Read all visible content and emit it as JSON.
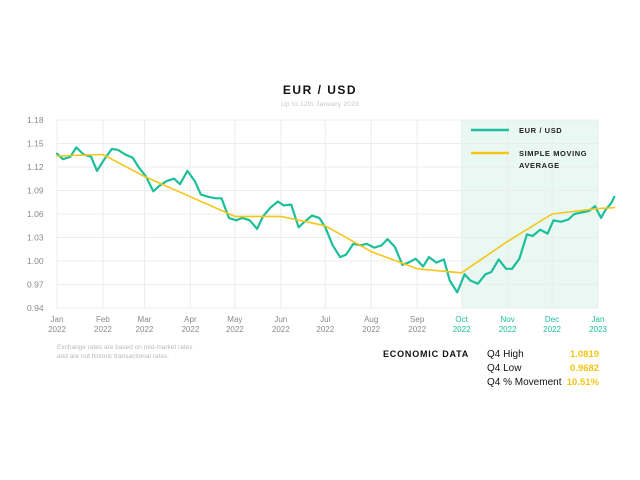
{
  "chart_data": {
    "type": "line",
    "title": "EUR / USD",
    "subtitle": "Up to 12th January 2023",
    "ylim": [
      0.94,
      1.18
    ],
    "y_ticks": [
      "1.18",
      "1.15",
      "1.12",
      "1.09",
      "1.06",
      "1.03",
      "1.00",
      "0.97",
      "0.94"
    ],
    "y_tick_values": [
      1.18,
      1.15,
      1.12,
      1.09,
      1.06,
      1.03,
      1.0,
      0.97,
      0.94
    ],
    "x_ticks": [
      {
        "label": [
          "Jan",
          "2022"
        ],
        "date": "2022-01-01"
      },
      {
        "label": [
          "Feb",
          "2022"
        ],
        "date": "2022-02-01"
      },
      {
        "label": [
          "Mar",
          "2022"
        ],
        "date": "2022-03-01"
      },
      {
        "label": [
          "Apr",
          "2022"
        ],
        "date": "2022-04-01"
      },
      {
        "label": [
          "May",
          "2022"
        ],
        "date": "2022-05-01"
      },
      {
        "label": [
          "Jun",
          "2022"
        ],
        "date": "2022-06-01"
      },
      {
        "label": [
          "Jul",
          "2022"
        ],
        "date": "2022-07-01"
      },
      {
        "label": [
          "Aug",
          "2022"
        ],
        "date": "2022-08-01"
      },
      {
        "label": [
          "Sep",
          "2022"
        ],
        "date": "2022-09-01"
      },
      {
        "label": [
          "Oct",
          "2022"
        ],
        "date": "2022-10-01",
        "highlight": true
      },
      {
        "label": [
          "Nov",
          "2022"
        ],
        "date": "2022-11-01",
        "highlight": true
      },
      {
        "label": [
          "Dec",
          "2022"
        ],
        "date": "2022-12-01",
        "highlight": true
      },
      {
        "label": [
          "Jan",
          "2023"
        ],
        "date": "2023-01-01",
        "highlight": true
      }
    ],
    "x_range": [
      "2022-01-01",
      "2023-01-01"
    ],
    "highlight_range": [
      "2022-10-01",
      "2023-01-01"
    ],
    "grid": true,
    "legend_position": "top-right",
    "series": [
      {
        "name": "EUR / USD",
        "color": "#1bbf9a",
        "points": [
          [
            "2022-01-01",
            1.137
          ],
          [
            "2022-01-05",
            1.13
          ],
          [
            "2022-01-10",
            1.133
          ],
          [
            "2022-01-14",
            1.145
          ],
          [
            "2022-01-19",
            1.136
          ],
          [
            "2022-01-24",
            1.133
          ],
          [
            "2022-01-28",
            1.115
          ],
          [
            "2022-02-02",
            1.13
          ],
          [
            "2022-02-07",
            1.143
          ],
          [
            "2022-02-11",
            1.142
          ],
          [
            "2022-02-16",
            1.136
          ],
          [
            "2022-02-21",
            1.132
          ],
          [
            "2022-02-25",
            1.12
          ],
          [
            "2022-03-02",
            1.108
          ],
          [
            "2022-03-07",
            1.089
          ],
          [
            "2022-03-11",
            1.096
          ],
          [
            "2022-03-16",
            1.102
          ],
          [
            "2022-03-21",
            1.105
          ],
          [
            "2022-03-25",
            1.098
          ],
          [
            "2022-03-30",
            1.115
          ],
          [
            "2022-04-04",
            1.102
          ],
          [
            "2022-04-08",
            1.085
          ],
          [
            "2022-04-13",
            1.082
          ],
          [
            "2022-04-18",
            1.08
          ],
          [
            "2022-04-22",
            1.08
          ],
          [
            "2022-04-27",
            1.055
          ],
          [
            "2022-05-02",
            1.052
          ],
          [
            "2022-05-06",
            1.055
          ],
          [
            "2022-05-11",
            1.052
          ],
          [
            "2022-05-16",
            1.041
          ],
          [
            "2022-05-20",
            1.057
          ],
          [
            "2022-05-25",
            1.068
          ],
          [
            "2022-05-30",
            1.076
          ],
          [
            "2022-06-03",
            1.071
          ],
          [
            "2022-06-08",
            1.072
          ],
          [
            "2022-06-13",
            1.043
          ],
          [
            "2022-06-17",
            1.05
          ],
          [
            "2022-06-22",
            1.058
          ],
          [
            "2022-06-27",
            1.055
          ],
          [
            "2022-07-01",
            1.043
          ],
          [
            "2022-07-06",
            1.02
          ],
          [
            "2022-07-11",
            1.005
          ],
          [
            "2022-07-15",
            1.008
          ],
          [
            "2022-07-20",
            1.022
          ],
          [
            "2022-07-25",
            1.02
          ],
          [
            "2022-07-29",
            1.022
          ],
          [
            "2022-08-03",
            1.017
          ],
          [
            "2022-08-08",
            1.02
          ],
          [
            "2022-08-12",
            1.028
          ],
          [
            "2022-08-17",
            1.018
          ],
          [
            "2022-08-22",
            0.995
          ],
          [
            "2022-08-26",
            0.998
          ],
          [
            "2022-08-31",
            1.003
          ],
          [
            "2022-09-05",
            0.993
          ],
          [
            "2022-09-09",
            1.005
          ],
          [
            "2022-09-14",
            0.998
          ],
          [
            "2022-09-19",
            1.002
          ],
          [
            "2022-09-23",
            0.975
          ],
          [
            "2022-09-28",
            0.96
          ],
          [
            "2022-10-03",
            0.983
          ],
          [
            "2022-10-07",
            0.975
          ],
          [
            "2022-10-12",
            0.971
          ],
          [
            "2022-10-17",
            0.983
          ],
          [
            "2022-10-21",
            0.986
          ],
          [
            "2022-10-26",
            1.002
          ],
          [
            "2022-10-31",
            0.99
          ],
          [
            "2022-11-04",
            0.99
          ],
          [
            "2022-11-09",
            1.003
          ],
          [
            "2022-11-14",
            1.034
          ],
          [
            "2022-11-18",
            1.032
          ],
          [
            "2022-11-23",
            1.04
          ],
          [
            "2022-11-28",
            1.035
          ],
          [
            "2022-12-02",
            1.052
          ],
          [
            "2022-12-07",
            1.05
          ],
          [
            "2022-12-12",
            1.053
          ],
          [
            "2022-12-16",
            1.06
          ],
          [
            "2022-12-21",
            1.062
          ],
          [
            "2022-12-26",
            1.064
          ],
          [
            "2022-12-30",
            1.07
          ],
          [
            "2023-01-03",
            1.055
          ],
          [
            "2023-01-06",
            1.065
          ],
          [
            "2023-01-10",
            1.074
          ],
          [
            "2023-01-12",
            1.082
          ]
        ]
      },
      {
        "name": "SIMPLE MOVING AVERAGE",
        "name_lines": [
          "SIMPLE MOVING",
          "AVERAGE"
        ],
        "color": "#f5c518",
        "points": [
          [
            "2022-01-01",
            1.134
          ],
          [
            "2022-02-01",
            1.136
          ],
          [
            "2022-03-01",
            1.108
          ],
          [
            "2022-04-01",
            1.082
          ],
          [
            "2022-05-01",
            1.057
          ],
          [
            "2022-06-01",
            1.057
          ],
          [
            "2022-07-01",
            1.045
          ],
          [
            "2022-08-01",
            1.012
          ],
          [
            "2022-09-01",
            0.99
          ],
          [
            "2022-10-01",
            0.985
          ],
          [
            "2022-11-01",
            1.025
          ],
          [
            "2022-12-01",
            1.06
          ],
          [
            "2023-01-01",
            1.067
          ],
          [
            "2023-01-12",
            1.068
          ]
        ]
      }
    ]
  },
  "footnote": {
    "line1": "Exchange rates are based on mid-market rates",
    "line2": "and are not historic transactional rates."
  },
  "economic_data": {
    "title": "ECONOMIC DATA",
    "rows": [
      {
        "label": "Q4 High",
        "value": "1.0819"
      },
      {
        "label": "Q4 Low",
        "value": "0.9682"
      },
      {
        "label": "Q4 % Movement",
        "value": "10.51%"
      }
    ],
    "value_color": "#f2c418"
  }
}
